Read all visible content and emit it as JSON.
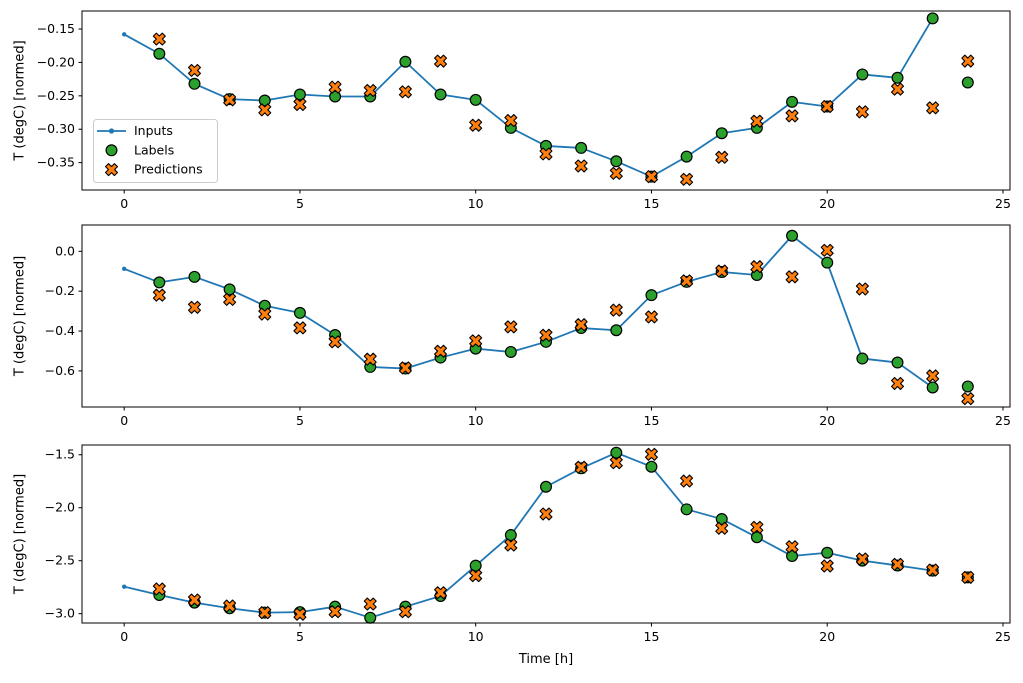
{
  "figure": {
    "background": "#ffffff",
    "xlabel": "Time [h]",
    "xlim": [
      -1.2,
      25.2
    ],
    "x_ticks": [
      0,
      5,
      10,
      15,
      20,
      25
    ],
    "x_tick_labels": [
      "0",
      "5",
      "10",
      "15",
      "20",
      "25"
    ],
    "x_inputs": [
      0,
      1,
      2,
      3,
      4,
      5,
      6,
      7,
      8,
      9,
      10,
      11,
      12,
      13,
      14,
      15,
      16,
      17,
      18,
      19,
      20,
      21,
      22,
      23
    ],
    "x_targets": [
      1,
      2,
      3,
      4,
      5,
      6,
      7,
      8,
      9,
      10,
      11,
      12,
      13,
      14,
      15,
      16,
      17,
      18,
      19,
      20,
      21,
      22,
      23,
      24
    ],
    "colors": {
      "inputs": "#1f77b4",
      "labels": "#2ca02c",
      "predictions": "#ff7f0e",
      "marker_edge": "#000000",
      "spine": "#000000",
      "legend_border": "#cccccc",
      "legend_bg": "#ffffff"
    },
    "legend": {
      "location": "center left of first subplot",
      "items": [
        {
          "label": "Inputs",
          "marker": "line-dot",
          "color": "#1f77b4"
        },
        {
          "label": "Labels",
          "marker": "circle",
          "color": "#2ca02c"
        },
        {
          "label": "Predictions",
          "marker": "x",
          "color": "#ff7f0e"
        }
      ]
    }
  },
  "chart_data": [
    {
      "type": "line",
      "ylabel": "T (degC) [normed]",
      "ylim": [
        -0.391,
        -0.123
      ],
      "yticks": [
        -0.15,
        -0.2,
        -0.25,
        -0.3,
        -0.35
      ],
      "ytick_labels": [
        "−0.15",
        "−0.20",
        "−0.25",
        "−0.30",
        "−0.35"
      ],
      "legend": true,
      "series": [
        {
          "name": "Inputs",
          "role": "inputs",
          "x_start": 0,
          "values": [
            -0.158,
            -0.187,
            -0.232,
            -0.255,
            -0.257,
            -0.248,
            -0.251,
            -0.251,
            -0.199,
            -0.248,
            -0.256,
            -0.298,
            -0.325,
            -0.328,
            -0.348,
            -0.371,
            -0.341,
            -0.306,
            -0.298,
            -0.259,
            -0.266,
            -0.218,
            -0.223,
            -0.134
          ]
        },
        {
          "name": "Labels",
          "role": "labels",
          "x_start": 1,
          "values": [
            -0.187,
            -0.232,
            -0.255,
            -0.257,
            -0.248,
            -0.251,
            -0.251,
            -0.199,
            -0.248,
            -0.256,
            -0.298,
            -0.325,
            -0.328,
            -0.348,
            -0.371,
            -0.341,
            -0.306,
            -0.298,
            -0.259,
            -0.266,
            -0.218,
            -0.223,
            -0.134,
            -0.23
          ]
        },
        {
          "name": "Predictions",
          "role": "predictions",
          "x_start": 1,
          "values": [
            -0.165,
            -0.212,
            -0.256,
            -0.271,
            -0.263,
            -0.237,
            -0.242,
            -0.244,
            -0.198,
            -0.294,
            -0.287,
            -0.337,
            -0.355,
            -0.366,
            -0.371,
            -0.375,
            -0.342,
            -0.288,
            -0.28,
            -0.266,
            -0.274,
            -0.24,
            -0.268,
            -0.198
          ]
        }
      ]
    },
    {
      "type": "line",
      "ylabel": "T (degC) [normed]",
      "ylim": [
        -0.781,
        0.132
      ],
      "yticks": [
        0.0,
        -0.2,
        -0.4,
        -0.6
      ],
      "ytick_labels": [
        "0.0",
        "−0.2",
        "−0.4",
        "−0.6"
      ],
      "legend": false,
      "series": [
        {
          "name": "Inputs",
          "role": "inputs",
          "x_start": 0,
          "values": [
            -0.088,
            -0.156,
            -0.128,
            -0.191,
            -0.273,
            -0.309,
            -0.42,
            -0.58,
            -0.588,
            -0.533,
            -0.488,
            -0.505,
            -0.454,
            -0.385,
            -0.396,
            -0.22,
            -0.153,
            -0.104,
            -0.119,
            0.078,
            -0.057,
            -0.538,
            -0.558,
            -0.683
          ]
        },
        {
          "name": "Labels",
          "role": "labels",
          "x_start": 1,
          "values": [
            -0.156,
            -0.128,
            -0.191,
            -0.273,
            -0.309,
            -0.42,
            -0.58,
            -0.588,
            -0.533,
            -0.488,
            -0.505,
            -0.454,
            -0.385,
            -0.396,
            -0.22,
            -0.153,
            -0.104,
            -0.119,
            0.078,
            -0.057,
            -0.538,
            -0.558,
            -0.683,
            -0.678
          ]
        },
        {
          "name": "Predictions",
          "role": "predictions",
          "x_start": 1,
          "values": [
            -0.22,
            -0.281,
            -0.241,
            -0.315,
            -0.384,
            -0.454,
            -0.541,
            -0.585,
            -0.501,
            -0.449,
            -0.379,
            -0.421,
            -0.368,
            -0.295,
            -0.329,
            -0.148,
            -0.099,
            -0.077,
            -0.128,
            0.005,
            -0.189,
            -0.663,
            -0.625,
            -0.739
          ]
        }
      ]
    },
    {
      "type": "line",
      "ylabel": "T (degC) [normed]",
      "ylim": [
        -3.088,
        -1.408
      ],
      "yticks": [
        -1.5,
        -2.0,
        -2.5,
        -3.0
      ],
      "ytick_labels": [
        "−1.5",
        "−2.0",
        "−2.5",
        "−3.0"
      ],
      "legend": false,
      "xlabel": "Time [h]",
      "series": [
        {
          "name": "Inputs",
          "role": "inputs",
          "x_start": 0,
          "values": [
            -2.745,
            -2.824,
            -2.896,
            -2.949,
            -2.99,
            -2.985,
            -2.934,
            -3.038,
            -2.934,
            -2.833,
            -2.547,
            -2.258,
            -1.802,
            -1.628,
            -1.481,
            -1.613,
            -2.015,
            -2.107,
            -2.279,
            -2.456,
            -2.425,
            -2.499,
            -2.545,
            -2.594
          ]
        },
        {
          "name": "Labels",
          "role": "labels",
          "x_start": 1,
          "values": [
            -2.824,
            -2.896,
            -2.949,
            -2.99,
            -2.985,
            -2.934,
            -3.038,
            -2.934,
            -2.833,
            -2.547,
            -2.258,
            -1.802,
            -1.628,
            -1.481,
            -1.613,
            -2.015,
            -2.107,
            -2.279,
            -2.456,
            -2.425,
            -2.499,
            -2.545,
            -2.594,
            -2.657
          ]
        },
        {
          "name": "Predictions",
          "role": "predictions",
          "x_start": 1,
          "values": [
            -2.767,
            -2.871,
            -2.928,
            -2.99,
            -3.005,
            -2.981,
            -2.909,
            -2.981,
            -2.802,
            -2.641,
            -2.352,
            -2.059,
            -1.618,
            -1.575,
            -1.496,
            -1.748,
            -2.194,
            -2.185,
            -2.368,
            -2.55,
            -2.484,
            -2.535,
            -2.588,
            -2.657
          ]
        }
      ]
    }
  ]
}
